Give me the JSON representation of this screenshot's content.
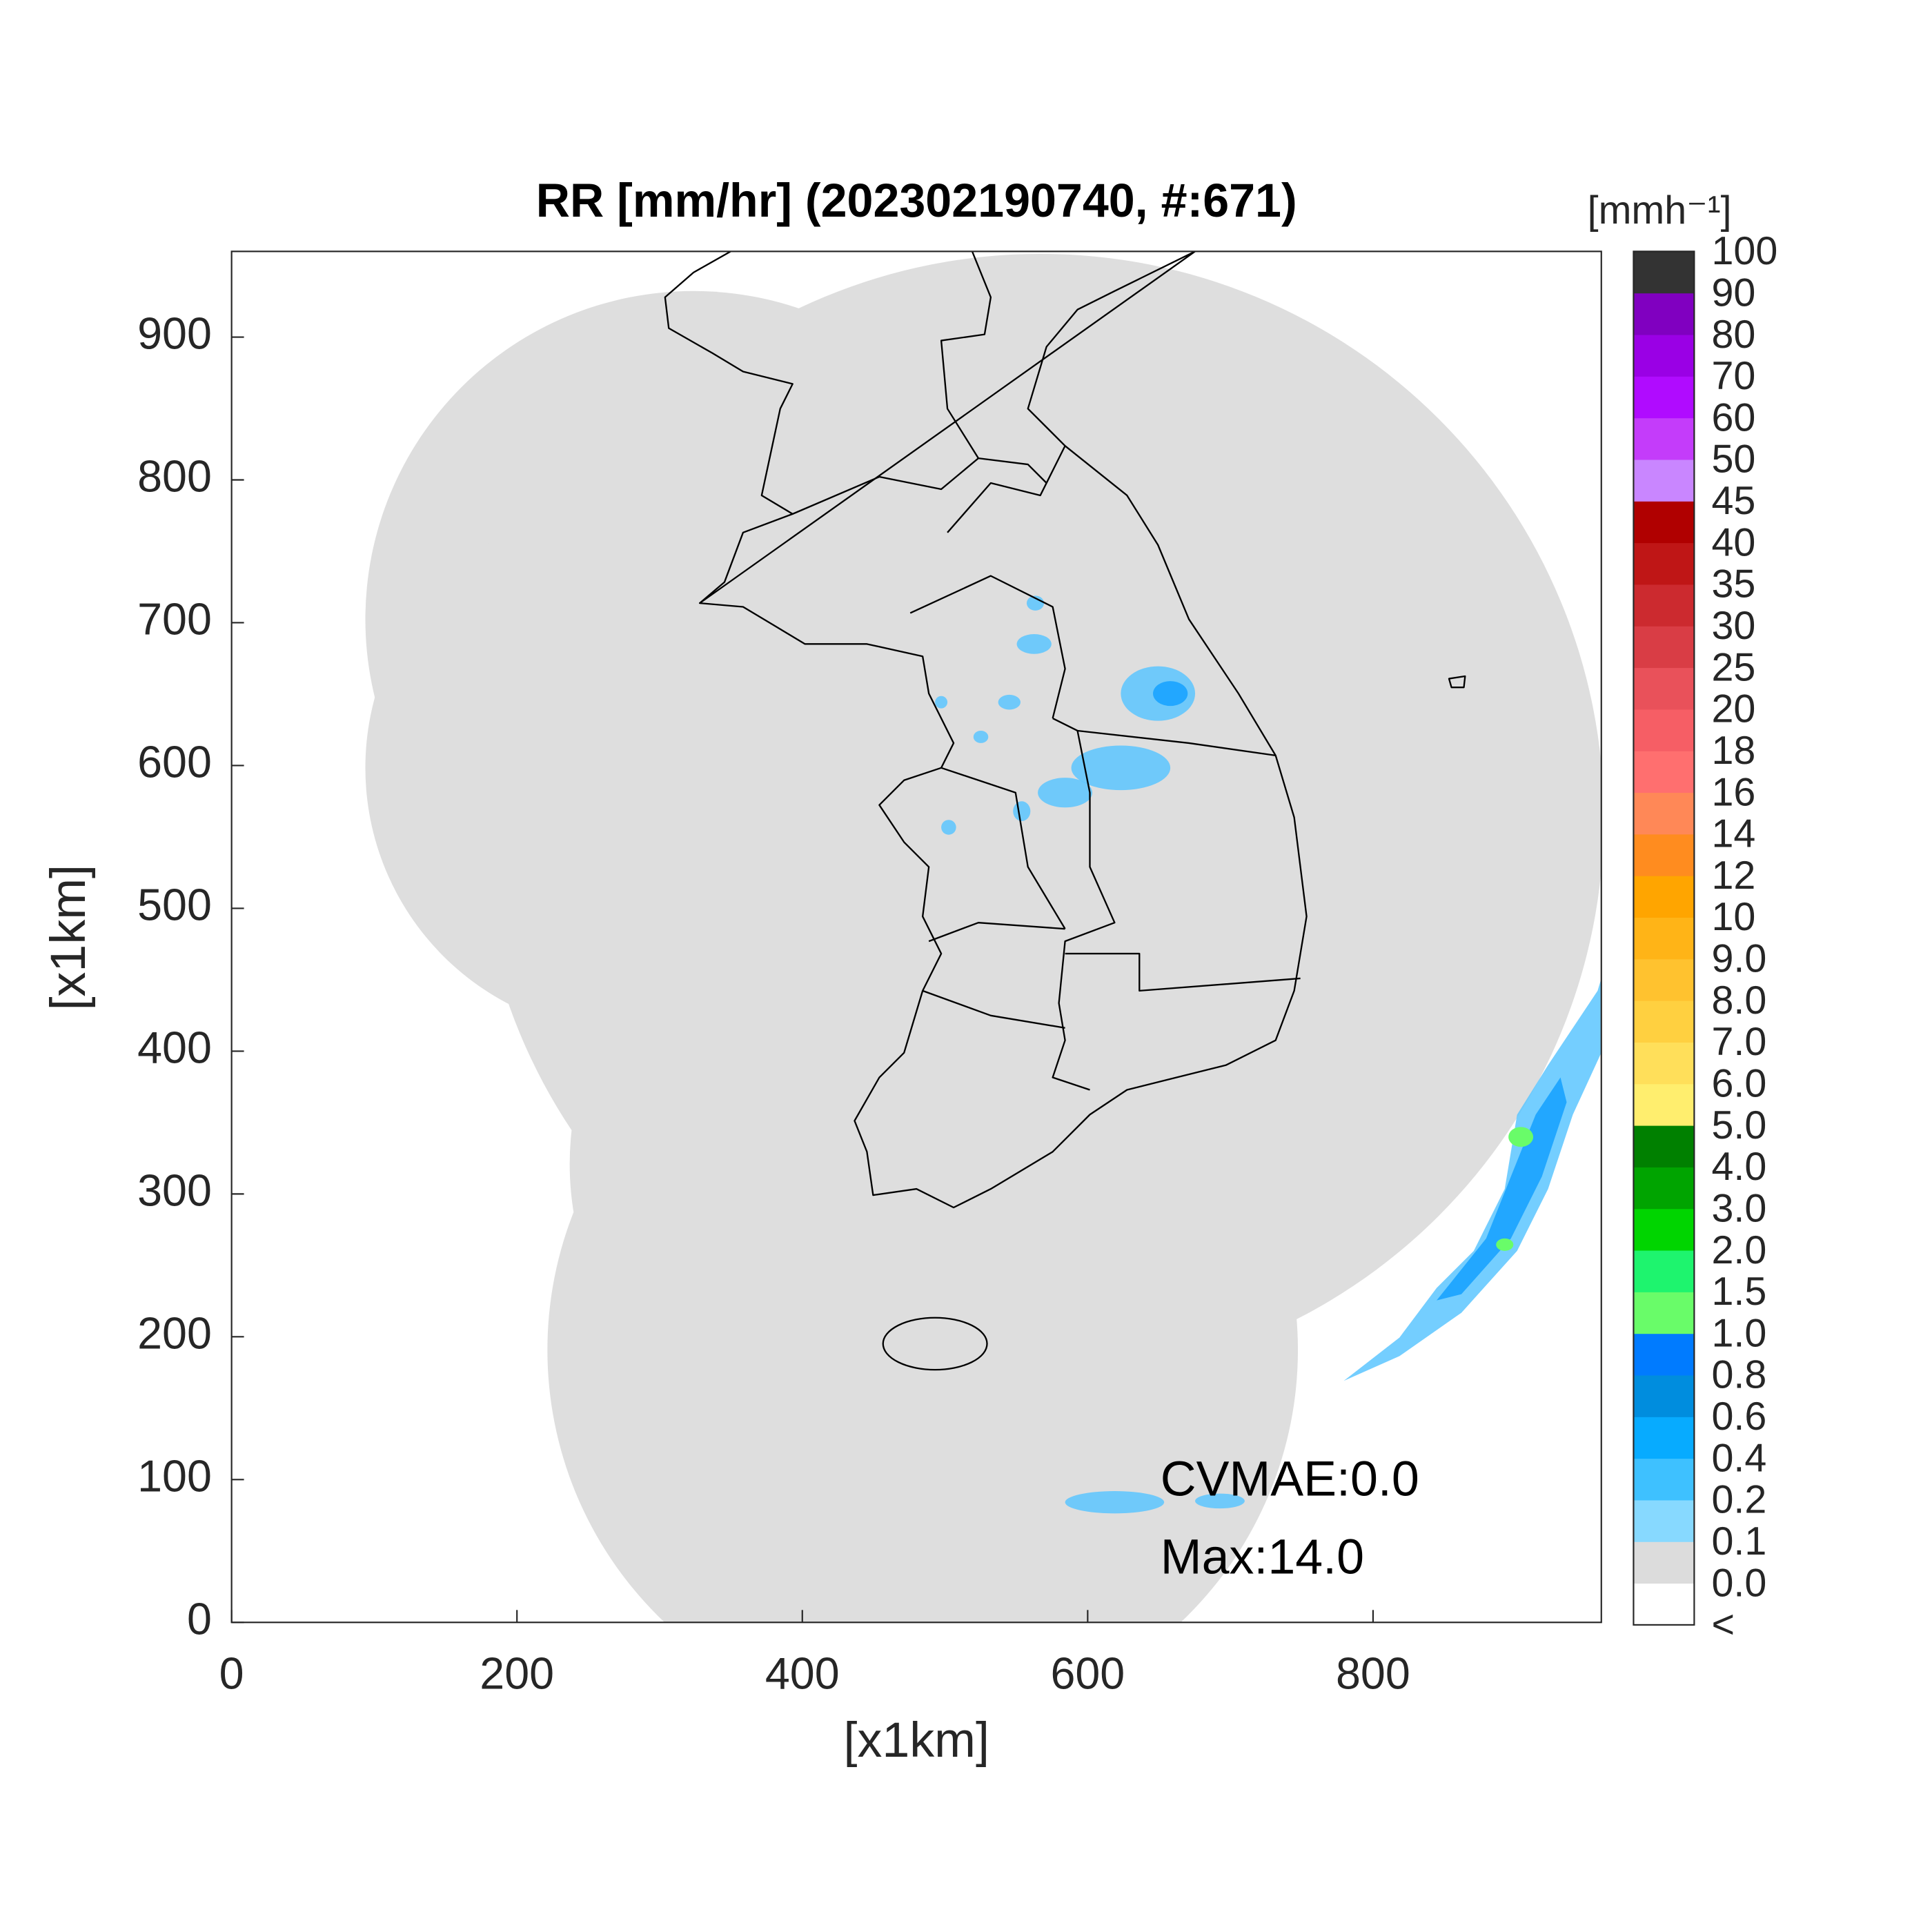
{
  "chart_data": {
    "type": "radar-map",
    "title": "RR [mm/hr] (202302190740, #:671)",
    "xlabel": "[x1km]",
    "ylabel": "[x1km]",
    "xlim": [
      0,
      960
    ],
    "ylim": [
      0,
      960
    ],
    "xticks": [
      0,
      200,
      400,
      600,
      800
    ],
    "yticks": [
      0,
      100,
      200,
      300,
      400,
      500,
      600,
      700,
      800,
      900
    ],
    "annotations": [
      "CVMAE:0.0",
      "Max:14.0"
    ],
    "colorbar": {
      "title": "[mmh⁻¹]",
      "labels": [
        "<",
        "0.0",
        "0.1",
        "0.2",
        "0.4",
        "0.6",
        "0.8",
        "1.0",
        "1.5",
        "2.0",
        "3.0",
        "4.0",
        "5.0",
        "6.0",
        "7.0",
        "8.0",
        "9.0",
        "10",
        "12",
        "14",
        "16",
        "18",
        "20",
        "25",
        "30",
        "35",
        "40",
        "45",
        "50",
        "60",
        "70",
        "80",
        "90",
        "100"
      ],
      "colors": [
        "#ffffff",
        "#dcdcdc",
        "#87d9ff",
        "#3ec1ff",
        "#07abff",
        "#008dde",
        "#007bff",
        "#69fc69",
        "#1ef46e",
        "#00d500",
        "#00a400",
        "#008000",
        "#ffee6e",
        "#ffdf5a",
        "#ffd040",
        "#ffc22f",
        "#ffb417",
        "#ffa500",
        "#ff8c1f",
        "#ff8857",
        "#ff6f6f",
        "#f65e65",
        "#e9515a",
        "#d93d45",
        "#cc2a2f",
        "#bf1616",
        "#b00000",
        "#c986ff",
        "#c43cfa",
        "#b00bff",
        "#9a00e5",
        "#8000c0",
        "#333333"
      ]
    }
  }
}
